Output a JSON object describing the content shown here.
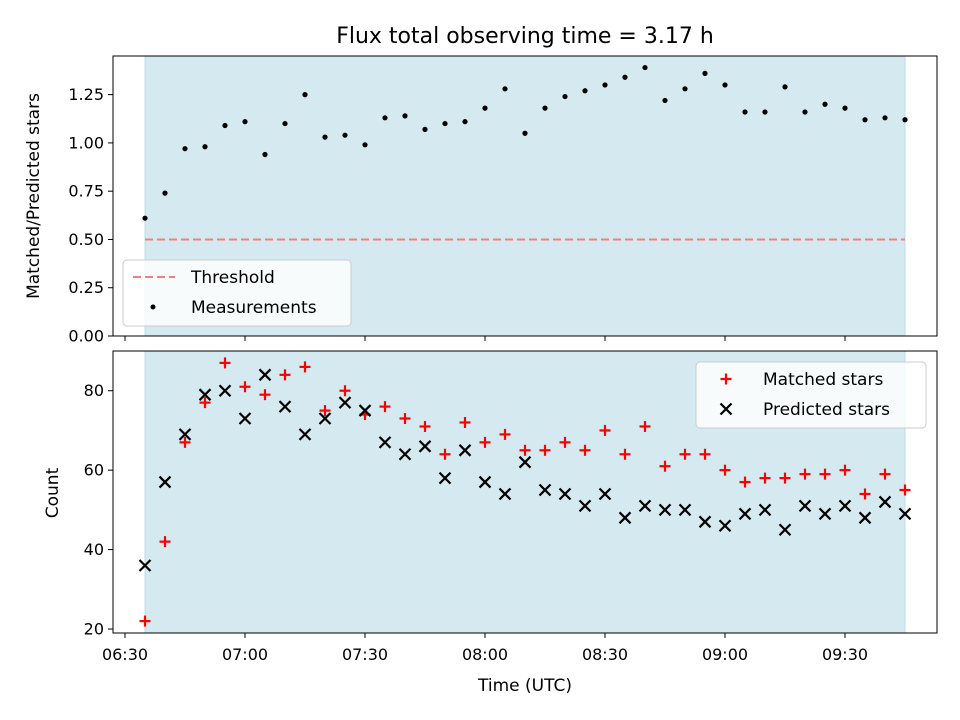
{
  "chart_data": [
    {
      "type": "scatter",
      "title": "Flux total observing time = 3.17 h",
      "ylabel": "Matched/Predicted stars",
      "ylim": [
        0,
        1.45
      ],
      "yticks": [
        "0.00",
        "0.25",
        "0.50",
        "0.75",
        "1.00",
        "1.25"
      ],
      "threshold": 0.5,
      "shaded_range": [
        "06:35",
        "09:45"
      ],
      "legend": {
        "placement": "lower-left",
        "entries": [
          "Threshold",
          "Measurements"
        ]
      },
      "series": [
        {
          "name": "Measurements",
          "x": [
            "06:35",
            "06:40",
            "06:45",
            "06:50",
            "06:55",
            "07:00",
            "07:05",
            "07:10",
            "07:15",
            "07:20",
            "07:25",
            "07:30",
            "07:35",
            "07:40",
            "07:45",
            "07:50",
            "07:55",
            "08:00",
            "08:05",
            "08:10",
            "08:15",
            "08:20",
            "08:25",
            "08:30",
            "08:35",
            "08:40",
            "08:45",
            "08:50",
            "08:55",
            "09:00",
            "09:05",
            "09:10",
            "09:15",
            "09:20",
            "09:25",
            "09:30",
            "09:35",
            "09:40",
            "09:45"
          ],
          "y": [
            0.61,
            0.74,
            0.97,
            0.98,
            1.09,
            1.11,
            0.94,
            1.1,
            1.25,
            1.03,
            1.04,
            0.99,
            1.13,
            1.14,
            1.07,
            1.1,
            1.11,
            1.18,
            1.28,
            1.05,
            1.18,
            1.24,
            1.27,
            1.3,
            1.34,
            1.39,
            1.22,
            1.28,
            1.36,
            1.3,
            1.16,
            1.16,
            1.29,
            1.16,
            1.2,
            1.18,
            1.12,
            1.13,
            1.12
          ]
        }
      ]
    },
    {
      "type": "scatter",
      "xlabel": "Time (UTC)",
      "ylabel": "Count",
      "ylim": [
        19,
        90
      ],
      "yticks": [
        "20",
        "40",
        "60",
        "80"
      ],
      "xlim": [
        "06:27",
        "09:53"
      ],
      "xticks": [
        "06:30",
        "07:00",
        "07:30",
        "08:00",
        "08:30",
        "09:00",
        "09:30"
      ],
      "shaded_range": [
        "06:35",
        "09:45"
      ],
      "legend": {
        "placement": "upper-right",
        "entries": [
          "Matched stars",
          "Predicted stars"
        ]
      },
      "series": [
        {
          "name": "Matched stars",
          "color": "#ff0000",
          "x": [
            "06:35",
            "06:40",
            "06:45",
            "06:50",
            "06:55",
            "07:00",
            "07:05",
            "07:10",
            "07:15",
            "07:20",
            "07:25",
            "07:30",
            "07:35",
            "07:40",
            "07:45",
            "07:50",
            "07:55",
            "08:00",
            "08:05",
            "08:10",
            "08:15",
            "08:20",
            "08:25",
            "08:30",
            "08:35",
            "08:40",
            "08:45",
            "08:50",
            "08:55",
            "09:00",
            "09:05",
            "09:10",
            "09:15",
            "09:20",
            "09:25",
            "09:30",
            "09:35",
            "09:40",
            "09:45"
          ],
          "y": [
            22,
            42,
            67,
            77,
            87,
            81,
            79,
            84,
            86,
            75,
            80,
            74,
            76,
            73,
            71,
            64,
            72,
            67,
            69,
            65,
            65,
            67,
            65,
            70,
            64,
            71,
            61,
            64,
            64,
            60,
            57,
            58,
            58,
            59,
            59,
            60,
            54,
            59,
            55
          ]
        },
        {
          "name": "Predicted stars",
          "color": "#000000",
          "x": [
            "06:35",
            "06:40",
            "06:45",
            "06:50",
            "06:55",
            "07:00",
            "07:05",
            "07:10",
            "07:15",
            "07:20",
            "07:25",
            "07:30",
            "07:35",
            "07:40",
            "07:45",
            "07:50",
            "07:55",
            "08:00",
            "08:05",
            "08:10",
            "08:15",
            "08:20",
            "08:25",
            "08:30",
            "08:35",
            "08:40",
            "08:45",
            "08:50",
            "08:55",
            "09:00",
            "09:05",
            "09:10",
            "09:15",
            "09:20",
            "09:25",
            "09:30",
            "09:35",
            "09:40",
            "09:45"
          ],
          "y": [
            36,
            57,
            69,
            79,
            80,
            73,
            84,
            76,
            69,
            73,
            77,
            75,
            67,
            64,
            66,
            58,
            65,
            57,
            54,
            62,
            55,
            54,
            51,
            54,
            48,
            51,
            50,
            50,
            47,
            46,
            49,
            50,
            45,
            51,
            49,
            51,
            48,
            52,
            49
          ]
        }
      ]
    }
  ],
  "colors": {
    "shade": "#d4eaf0",
    "threshold": "#f08080",
    "matched": "#ff0000",
    "predicted": "#000000",
    "measurement": "#000000"
  }
}
